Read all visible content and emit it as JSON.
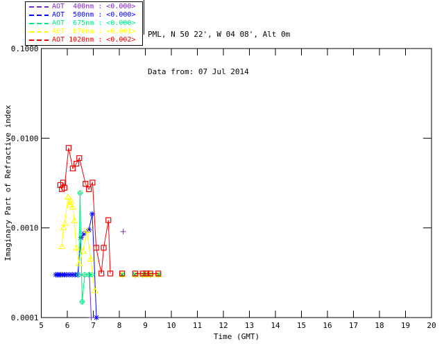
{
  "header": {
    "line1": "PML, N 50 22', W 04 08', Alt 0m",
    "line2": "Data from: 07 Jul 2014"
  },
  "legend": {
    "entries": [
      {
        "label": "AOT  400nm : <0.000>",
        "color": "#7D26CD"
      },
      {
        "label": "AOT  500nm : <0.000>",
        "color": "#0000FF"
      },
      {
        "label": "AOT  675nm : <0.000>",
        "color": "#00E87F"
      },
      {
        "label": "AOT  870nm : <0.001>",
        "color": "#FFFF00"
      },
      {
        "label": "AOT 1020nm : <0.002>",
        "color": "#F00000"
      }
    ]
  },
  "chart_data": {
    "type": "line",
    "title": "",
    "xlabel": "Time (GMT)",
    "ylabel": "Imaginary Part of Refractive index",
    "grid": false,
    "x_axis": {
      "min": 5,
      "max": 20,
      "ticks": [
        5,
        6,
        7,
        8,
        9,
        10,
        11,
        12,
        13,
        14,
        15,
        16,
        17,
        18,
        19,
        20
      ]
    },
    "y_axis": {
      "scale": "log",
      "min": 0.0001,
      "max": 0.1,
      "ticks": [
        {
          "value": 0.1,
          "label": "0.1000"
        },
        {
          "value": 0.01,
          "label": "0.0100"
        },
        {
          "value": 0.001,
          "label": "0.0010"
        },
        {
          "value": 0.0001,
          "label": "0.0001"
        }
      ]
    },
    "series": [
      {
        "name": "AOT 400nm",
        "color": "#7D26CD",
        "marker": "plus",
        "points": [
          [
            6.85,
            0.0003
          ],
          [
            6.92,
            0.0001
          ],
          [
            8.15,
            0.00091
          ]
        ]
      },
      {
        "name": "AOT 500nm",
        "color": "#0000FF",
        "marker": "asterisk",
        "points": [
          [
            5.56,
            0.0003
          ],
          [
            5.62,
            0.0003
          ],
          [
            5.68,
            0.0003
          ],
          [
            5.74,
            0.0003
          ],
          [
            5.8,
            0.0003
          ],
          [
            5.88,
            0.0003
          ],
          [
            5.97,
            0.0003
          ],
          [
            6.08,
            0.0003
          ],
          [
            6.19,
            0.0003
          ],
          [
            6.3,
            0.0003
          ],
          [
            6.4,
            0.0003
          ],
          [
            6.53,
            0.00078
          ],
          [
            6.64,
            0.00086
          ],
          [
            6.83,
            0.00095
          ],
          [
            6.96,
            0.00143
          ],
          [
            7.12,
            0.0001
          ],
          [
            8.11,
            0.0003
          ],
          [
            8.61,
            0.0003
          ],
          [
            8.9,
            0.0003
          ],
          [
            9.04,
            0.0003
          ],
          [
            9.19,
            0.0003
          ],
          [
            9.5,
            0.0003
          ]
        ]
      },
      {
        "name": "AOT 675nm",
        "color": "#00E87F",
        "marker": "circle-plus",
        "points": [
          [
            6.44,
            0.0003
          ],
          [
            6.49,
            0.00245
          ],
          [
            6.57,
            0.00015
          ],
          [
            6.67,
            0.0003
          ],
          [
            6.83,
            0.0003
          ],
          [
            6.96,
            0.0003
          ],
          [
            8.11,
            0.0003
          ],
          [
            8.61,
            0.0003
          ],
          [
            8.9,
            0.0003
          ],
          [
            9.04,
            0.0003
          ],
          [
            9.19,
            0.0003
          ],
          [
            9.5,
            0.0003
          ]
        ]
      },
      {
        "name": "AOT 870nm",
        "color": "#FFFF00",
        "marker": "triangle",
        "points": [
          [
            5.79,
            0.00062
          ],
          [
            5.85,
            0.001
          ],
          [
            5.9,
            0.00112
          ],
          [
            6.03,
            0.0022
          ],
          [
            6.09,
            0.0018
          ],
          [
            6.14,
            0.002
          ],
          [
            6.21,
            0.0017
          ],
          [
            6.27,
            0.0012
          ],
          [
            6.35,
            0.0006
          ],
          [
            6.45,
            0.0004
          ],
          [
            6.6,
            0.00055
          ],
          [
            6.75,
            0.00093
          ],
          [
            6.9,
            0.00045
          ],
          [
            7.05,
            0.0002
          ],
          [
            8.11,
            0.0003
          ],
          [
            8.61,
            0.0003
          ],
          [
            8.9,
            0.0003
          ],
          [
            9.04,
            0.0003
          ],
          [
            9.19,
            0.0003
          ],
          [
            9.5,
            0.0003
          ]
        ]
      },
      {
        "name": "AOT 1020nm",
        "color": "#F00000",
        "marker": "square",
        "points": [
          [
            5.73,
            0.003
          ],
          [
            5.79,
            0.0027
          ],
          [
            5.84,
            0.0032
          ],
          [
            5.89,
            0.0028
          ],
          [
            6.05,
            0.0078
          ],
          [
            6.21,
            0.0046
          ],
          [
            6.35,
            0.0052
          ],
          [
            6.46,
            0.006
          ],
          [
            6.7,
            0.0031
          ],
          [
            6.83,
            0.0027
          ],
          [
            6.97,
            0.0032
          ],
          [
            7.11,
            0.0006
          ],
          [
            7.31,
            0.00031
          ],
          [
            7.4,
            0.0006
          ],
          [
            7.58,
            0.00122
          ],
          [
            7.65,
            0.00031
          ],
          [
            8.11,
            0.00031
          ],
          [
            8.61,
            0.00031
          ],
          [
            8.9,
            0.00031
          ],
          [
            9.04,
            0.00031
          ],
          [
            9.19,
            0.00031
          ],
          [
            9.5,
            0.00031
          ]
        ]
      }
    ]
  }
}
